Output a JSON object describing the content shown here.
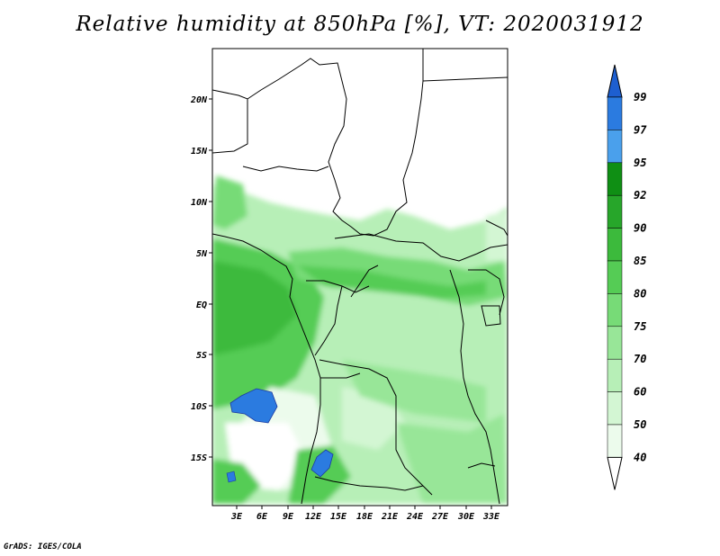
{
  "title": "Relative humidity at 850hPa [%], VT: 2020031912",
  "credit": "GrADS: IGES/COLA",
  "map": {
    "lat_labels": [
      "20N",
      "15N",
      "10N",
      "5N",
      "EQ",
      "5S",
      "10S",
      "15S"
    ],
    "lon_labels": [
      "3E",
      "6E",
      "9E",
      "12E",
      "15E",
      "18E",
      "21E",
      "24E",
      "27E",
      "30E",
      "33E"
    ]
  },
  "colorbar": {
    "levels": [
      "99",
      "97",
      "95",
      "92",
      "90",
      "85",
      "80",
      "75",
      "70",
      "60",
      "50",
      "40"
    ],
    "colors": [
      "#1e5fd0",
      "#2b7be0",
      "#4aa0ec",
      "#0f8f14",
      "#27a62a",
      "#3cba3c",
      "#55cc55",
      "#77db77",
      "#98e698",
      "#b7efb7",
      "#d3f6d3",
      "#ecfbec"
    ]
  }
}
